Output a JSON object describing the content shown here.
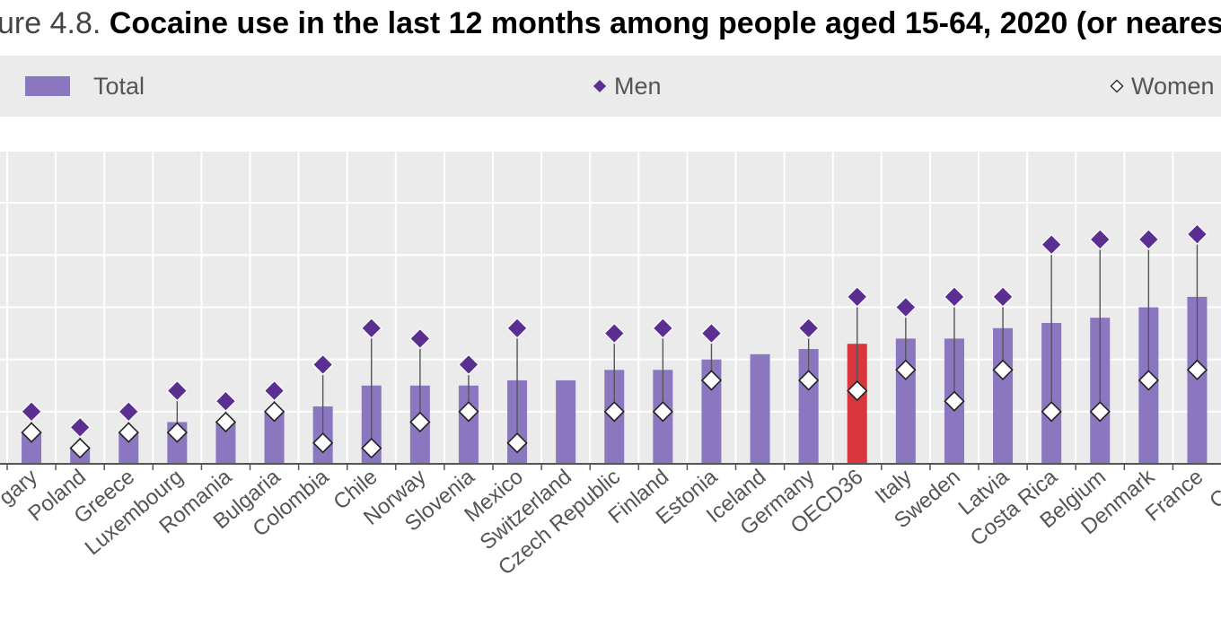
{
  "figure": {
    "label": "ure 4.8.",
    "title": "Cocaine use in the last 12 months among people aged 15-64, 2020 (or nearest ye"
  },
  "legend": {
    "total_label": "Total",
    "men_label": "Men",
    "women_label": "Women"
  },
  "colors": {
    "total": "#8b76c0",
    "highlight": "#d9363e",
    "men": "#5b2e91",
    "women": "#ffffff",
    "legend_background": "#ebebeb",
    "plot_background": "#ebebeb",
    "grid": "#ffffff",
    "axis": "#555555",
    "text": "#555555"
  },
  "chart_data": {
    "type": "bar",
    "categories": [
      "Hungary",
      "Poland",
      "Greece",
      "Luxembourg",
      "Romania",
      "Bulgaria",
      "Colombia",
      "Chile",
      "Norway",
      "Slovenia",
      "Mexico",
      "Switzerland",
      "Czech Republic",
      "Finland",
      "Estonia",
      "Iceland",
      "Germany",
      "OECD36",
      "Italy",
      "Sweden",
      "Latvia",
      "Costa Rica",
      "Belgium",
      "Denmark",
      "France",
      "Croatia"
    ],
    "tick_labels": [
      "gary",
      "Poland",
      "Greece",
      "Luxembourg",
      "Romania",
      "Bulgaria",
      "Colombia",
      "Chile",
      "Norway",
      "Slovenia",
      "Mexico",
      "Switzerland",
      "Czech Republic",
      "Finland",
      "Estonia",
      "Iceland",
      "Germany",
      "OECD36",
      "Italy",
      "Sweden",
      "Latvia",
      "Costa Rica",
      "Belgium",
      "Denmark",
      "France",
      "Croa"
    ],
    "highlight_category": "OECD36",
    "series": [
      {
        "name": "Total",
        "type": "bar",
        "values": [
          0.3,
          0.15,
          0.3,
          0.4,
          0.4,
          0.5,
          0.55,
          0.75,
          0.75,
          0.75,
          0.8,
          0.8,
          0.9,
          0.9,
          1.0,
          1.05,
          1.1,
          1.15,
          1.2,
          1.2,
          1.3,
          1.35,
          1.4,
          1.5,
          1.6,
          null
        ]
      },
      {
        "name": "Men",
        "type": "marker",
        "values": [
          0.5,
          0.35,
          0.5,
          0.7,
          0.6,
          0.7,
          0.95,
          1.3,
          1.2,
          0.95,
          1.3,
          null,
          1.25,
          1.3,
          1.25,
          null,
          1.3,
          1.6,
          1.5,
          1.6,
          1.6,
          2.1,
          2.15,
          2.15,
          2.2,
          null
        ]
      },
      {
        "name": "Women",
        "type": "marker",
        "values": [
          0.3,
          0.15,
          0.3,
          0.3,
          0.4,
          0.5,
          0.2,
          0.15,
          0.4,
          0.5,
          0.2,
          null,
          0.5,
          0.5,
          0.8,
          null,
          0.8,
          0.7,
          0.9,
          0.6,
          0.9,
          0.5,
          0.5,
          0.8,
          0.9,
          null
        ]
      }
    ],
    "ylim": [
      0,
      3.0
    ],
    "grid": true,
    "legend_position": "top",
    "xlabel": "",
    "ylabel": ""
  }
}
